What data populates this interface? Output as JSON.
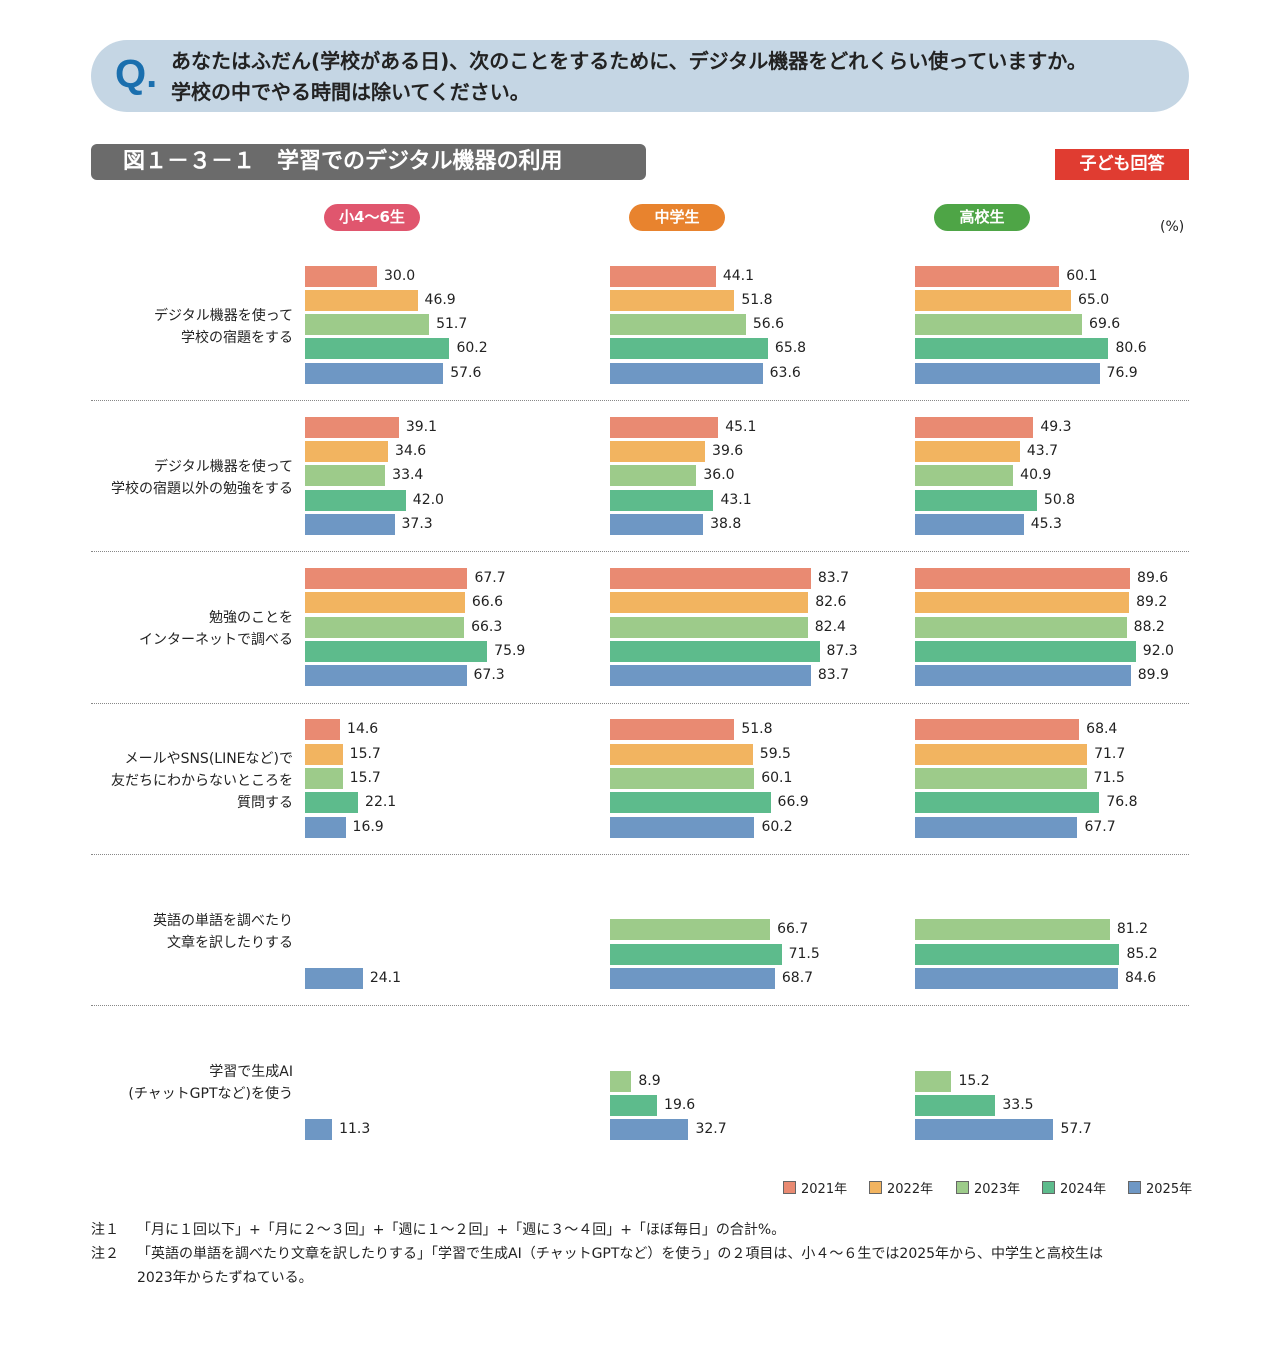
{
  "question": {
    "mark": "Q.",
    "line1": "あなたはふだん(学校がある日)、次のことをするために、デジタル機器をどれくらい使っていますか。",
    "line2": "学校の中でやる時間は除いてください。"
  },
  "figure_title": "図１－３－１　学習でのデジタル機器の利用",
  "respondent_badge": "子ども回答",
  "chart_data": {
    "type": "bar",
    "orientation": "horizontal",
    "unit": "(%)",
    "groups": [
      {
        "name": "小4〜6生",
        "color": "#e0566e"
      },
      {
        "name": "中学生",
        "color": "#e8832e"
      },
      {
        "name": "高校生",
        "color": "#4ea546"
      }
    ],
    "years": [
      "2021年",
      "2022年",
      "2023年",
      "2024年",
      "2025年"
    ],
    "colors": [
      "#e98a72",
      "#f2b460",
      "#9dcb8a",
      "#5dbb8c",
      "#6e97c4"
    ],
    "items": [
      {
        "label": "デジタル機器を使って\n学校の宿題をする",
        "values": [
          [
            30.0,
            46.9,
            51.7,
            60.2,
            57.6
          ],
          [
            44.1,
            51.8,
            56.6,
            65.8,
            63.6
          ],
          [
            60.1,
            65.0,
            69.6,
            80.6,
            76.9
          ]
        ]
      },
      {
        "label": "デジタル機器を使って\n学校の宿題以外の勉強をする",
        "values": [
          [
            39.1,
            34.6,
            33.4,
            42.0,
            37.3
          ],
          [
            45.1,
            39.6,
            36.0,
            43.1,
            38.8
          ],
          [
            49.3,
            43.7,
            40.9,
            50.8,
            45.3
          ]
        ]
      },
      {
        "label": "勉強のことを\nインターネットで調べる",
        "values": [
          [
            67.7,
            66.6,
            66.3,
            75.9,
            67.3
          ],
          [
            83.7,
            82.6,
            82.4,
            87.3,
            83.7
          ],
          [
            89.6,
            89.2,
            88.2,
            92.0,
            89.9
          ]
        ]
      },
      {
        "label": "メールやSNS(LINEなど)で\n友だちにわからないところを\n質問する",
        "values": [
          [
            14.6,
            15.7,
            15.7,
            22.1,
            16.9
          ],
          [
            51.8,
            59.5,
            60.1,
            66.9,
            60.2
          ],
          [
            68.4,
            71.7,
            71.5,
            76.8,
            67.7
          ]
        ]
      },
      {
        "label": "英語の単語を調べたり\n文章を訳したりする",
        "values": [
          [
            null,
            null,
            null,
            null,
            24.1
          ],
          [
            null,
            null,
            66.7,
            71.5,
            68.7
          ],
          [
            null,
            null,
            81.2,
            85.2,
            84.6
          ]
        ]
      },
      {
        "label": "学習で生成AI\n(チャットGPTなど)を使う",
        "values": [
          [
            null,
            null,
            null,
            null,
            11.3
          ],
          [
            null,
            null,
            8.9,
            19.6,
            32.7
          ],
          [
            null,
            null,
            15.2,
            33.5,
            57.7
          ]
        ]
      }
    ]
  },
  "notes": [
    {
      "label": "注１",
      "text": "「月に１回以下」+「月に２～３回」+「週に１～２回」+「週に３～４回」+「ほぼ毎日」の合計%。"
    },
    {
      "label": "注２",
      "text": "「英語の単語を調べたり文章を訳したりする」「学習で生成AI（チャットGPTなど）を使う」の２項目は、小４～６生では2025年から、中学生と高校生は",
      "text2": "2023年からたずねている。"
    }
  ]
}
